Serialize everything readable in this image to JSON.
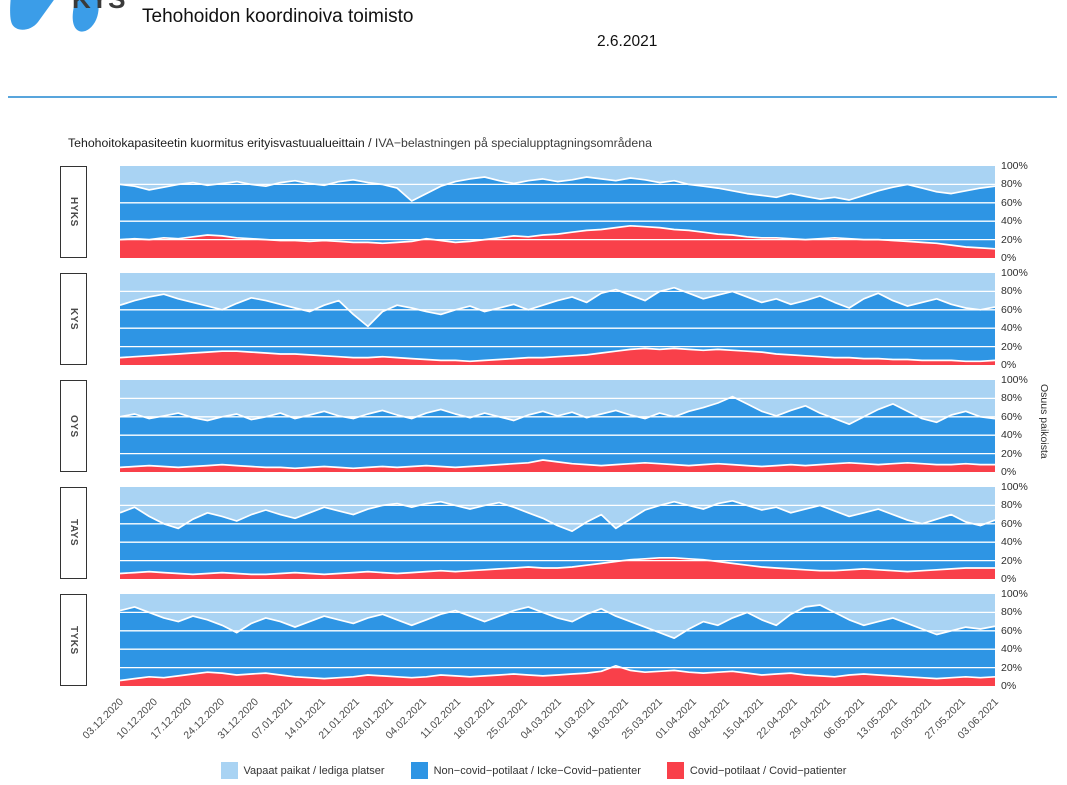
{
  "header": {
    "logo_text": "KYS",
    "logo_color": "#3B9DE8",
    "title": "Tehohoidon koordinoiva toimisto",
    "date": "2.6.2021",
    "rule_color": "#58A5DC"
  },
  "chart_data": {
    "type": "area",
    "title_fi": "Tehohoitokapasiteetin kuormitus erityisvastuualueittain / ",
    "title_sv": "IVA−belastningen på specialupptagningsområdena",
    "right_axis_label": "Osuus paikoista",
    "ylim": [
      0,
      100
    ],
    "y_ticks": [
      "100%",
      "80%",
      "60%",
      "40%",
      "20%",
      "0%"
    ],
    "gridlines_pct": [
      20,
      40,
      60,
      80
    ],
    "x_range": [
      "03.12.2020",
      "03.06.2021"
    ],
    "x_tick_labels": [
      "03.12.2020",
      "10.12.2020",
      "17.12.2020",
      "24.12.2020",
      "31.12.2020",
      "07.01.2021",
      "14.01.2021",
      "21.01.2021",
      "28.01.2021",
      "04.02.2021",
      "11.02.2021",
      "18.02.2021",
      "25.02.2021",
      "04.03.2021",
      "11.03.2021",
      "18.03.2021",
      "25.03.2021",
      "01.04.2021",
      "08.04.2021",
      "15.04.2021",
      "22.04.2021",
      "29.04.2021",
      "06.05.2021",
      "13.05.2021",
      "20.05.2021",
      "27.05.2021",
      "03.06.2021"
    ],
    "colors": {
      "free": "#A9D3F3",
      "noncovid": "#2E95E4",
      "covid": "#F9404A",
      "gridline": "#FFFFFF"
    },
    "legend": [
      {
        "key": "free",
        "label": "Vapaat paikat / lediga platser"
      },
      {
        "key": "noncovid",
        "label": "Non−covid−potilaat / Icke−Covid−patienter"
      },
      {
        "key": "covid",
        "label": "Covid−potilaat / Covid−patienter"
      }
    ],
    "stack_order_bottom_to_top": [
      "covid",
      "noncovid",
      "free"
    ],
    "value_unit": "percent of ICU beds (free = 100 − occupied)",
    "points_per_series": 61,
    "panels": [
      {
        "label": "HYKS",
        "covid_pct": [
          20,
          21,
          20,
          22,
          21,
          23,
          25,
          24,
          22,
          21,
          20,
          19,
          19,
          18,
          19,
          18,
          17,
          17,
          16,
          17,
          18,
          21,
          19,
          17,
          18,
          20,
          22,
          24,
          23,
          25,
          26,
          28,
          30,
          31,
          33,
          35,
          34,
          33,
          31,
          30,
          28,
          26,
          25,
          23,
          22,
          22,
          21,
          20,
          21,
          22,
          21,
          20,
          20,
          19,
          18,
          17,
          16,
          14,
          12,
          11,
          10
        ],
        "occupied_pct": [
          80,
          78,
          74,
          77,
          80,
          82,
          79,
          81,
          83,
          80,
          78,
          82,
          84,
          81,
          79,
          83,
          85,
          82,
          80,
          76,
          62,
          70,
          78,
          83,
          86,
          88,
          84,
          81,
          84,
          86,
          83,
          85,
          88,
          86,
          84,
          87,
          85,
          82,
          84,
          80,
          78,
          76,
          73,
          70,
          68,
          66,
          70,
          67,
          64,
          66,
          63,
          68,
          73,
          77,
          80,
          76,
          72,
          70,
          73,
          76,
          78
        ]
      },
      {
        "label": "KYS",
        "covid_pct": [
          8,
          9,
          10,
          11,
          12,
          13,
          14,
          15,
          15,
          14,
          13,
          12,
          12,
          11,
          10,
          9,
          8,
          8,
          9,
          8,
          7,
          6,
          5,
          5,
          4,
          5,
          6,
          7,
          8,
          8,
          9,
          10,
          11,
          13,
          15,
          17,
          18,
          17,
          18,
          17,
          16,
          17,
          16,
          15,
          14,
          12,
          11,
          10,
          9,
          8,
          8,
          7,
          7,
          6,
          6,
          5,
          5,
          5,
          4,
          4,
          5
        ],
        "occupied_pct": [
          65,
          70,
          74,
          77,
          72,
          68,
          64,
          60,
          67,
          73,
          70,
          66,
          62,
          58,
          65,
          70,
          55,
          42,
          58,
          65,
          62,
          58,
          55,
          60,
          64,
          58,
          62,
          66,
          60,
          65,
          70,
          74,
          68,
          78,
          82,
          76,
          70,
          80,
          84,
          78,
          72,
          76,
          80,
          74,
          68,
          72,
          66,
          70,
          75,
          68,
          62,
          72,
          78,
          70,
          64,
          68,
          72,
          66,
          62,
          60,
          63
        ]
      },
      {
        "label": "OYS",
        "covid_pct": [
          5,
          6,
          7,
          6,
          5,
          6,
          7,
          8,
          7,
          6,
          5,
          5,
          4,
          5,
          6,
          5,
          4,
          5,
          6,
          5,
          6,
          7,
          6,
          5,
          6,
          7,
          8,
          9,
          10,
          13,
          11,
          9,
          8,
          7,
          8,
          9,
          10,
          9,
          8,
          7,
          8,
          9,
          8,
          7,
          6,
          7,
          8,
          7,
          8,
          9,
          10,
          9,
          8,
          9,
          10,
          9,
          8,
          8,
          9,
          8,
          8
        ],
        "occupied_pct": [
          60,
          63,
          58,
          61,
          64,
          59,
          56,
          60,
          63,
          57,
          60,
          64,
          58,
          62,
          66,
          61,
          58,
          63,
          67,
          62,
          58,
          64,
          68,
          63,
          59,
          64,
          60,
          56,
          62,
          66,
          61,
          65,
          59,
          63,
          67,
          62,
          58,
          64,
          60,
          66,
          70,
          75,
          82,
          74,
          66,
          61,
          67,
          72,
          64,
          58,
          52,
          60,
          68,
          74,
          66,
          58,
          54,
          62,
          66,
          60,
          58
        ]
      },
      {
        "label": "TAYS",
        "covid_pct": [
          6,
          7,
          8,
          7,
          6,
          5,
          6,
          7,
          6,
          5,
          5,
          6,
          7,
          6,
          5,
          6,
          7,
          8,
          7,
          6,
          7,
          8,
          9,
          8,
          9,
          10,
          11,
          12,
          13,
          12,
          12,
          13,
          15,
          17,
          19,
          21,
          22,
          23,
          23,
          22,
          21,
          19,
          17,
          15,
          13,
          12,
          11,
          10,
          9,
          9,
          10,
          11,
          10,
          9,
          8,
          9,
          10,
          11,
          12,
          12,
          12
        ],
        "occupied_pct": [
          72,
          78,
          68,
          60,
          55,
          65,
          72,
          68,
          63,
          70,
          75,
          70,
          66,
          72,
          78,
          74,
          70,
          76,
          80,
          82,
          78,
          82,
          84,
          80,
          76,
          80,
          83,
          78,
          72,
          66,
          58,
          52,
          62,
          70,
          55,
          65,
          75,
          80,
          84,
          80,
          76,
          82,
          85,
          80,
          75,
          78,
          72,
          76,
          80,
          74,
          68,
          72,
          76,
          70,
          64,
          60,
          65,
          70,
          62,
          58,
          64
        ]
      },
      {
        "label": "TYKS",
        "covid_pct": [
          6,
          8,
          10,
          9,
          11,
          13,
          15,
          14,
          12,
          13,
          14,
          12,
          10,
          9,
          8,
          9,
          10,
          12,
          11,
          10,
          9,
          10,
          12,
          11,
          10,
          11,
          12,
          13,
          12,
          11,
          12,
          13,
          14,
          16,
          22,
          17,
          15,
          16,
          17,
          15,
          14,
          15,
          16,
          14,
          12,
          13,
          14,
          12,
          11,
          10,
          12,
          13,
          12,
          11,
          10,
          9,
          8,
          9,
          10,
          9,
          10
        ],
        "occupied_pct": [
          82,
          86,
          80,
          74,
          70,
          76,
          72,
          66,
          58,
          68,
          74,
          70,
          64,
          70,
          76,
          72,
          68,
          74,
          78,
          72,
          66,
          72,
          78,
          82,
          76,
          70,
          76,
          82,
          86,
          80,
          74,
          70,
          78,
          84,
          76,
          70,
          64,
          58,
          52,
          62,
          70,
          66,
          74,
          80,
          72,
          66,
          78,
          86,
          88,
          80,
          72,
          66,
          70,
          74,
          68,
          62,
          56,
          60,
          64,
          62,
          65
        ]
      }
    ]
  }
}
